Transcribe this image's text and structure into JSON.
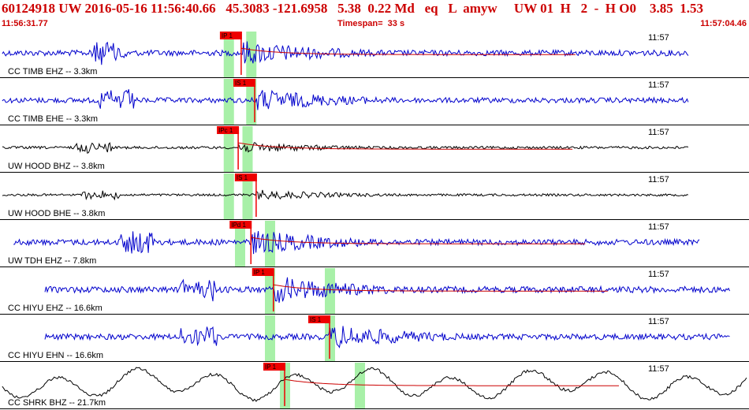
{
  "header": {
    "title": "60124918 UW 2016-05-16 11:56:40.66   45.3083 -121.6958   5.38  0.22 Md   eq   L  amyw     UW 01  H   2  -  H O0    3.85  1.53",
    "start_time": "11:56:31.77",
    "timespan": "Timespan=  33 s",
    "end_time": "11:57:04.46"
  },
  "colors": {
    "accent": "#cc0000",
    "trace_blue": "#0000cc",
    "trace_black": "#000000",
    "window_green": "#a8f0a8",
    "pick_red": "#ee0000"
  },
  "traces": [
    {
      "label": "CC TIMB EHZ -- 3.3km",
      "time_label": "11:57",
      "color": "#0000cc",
      "pick": "IP 1",
      "pick_t": 0.322,
      "windows": [
        0.305,
        0.335
      ],
      "x0": 0.003,
      "x1": 0.92,
      "burst": 0.12,
      "amp": 0.55,
      "decay": true
    },
    {
      "label": "CC TIMB EHE -- 3.3km",
      "time_label": "11:57",
      "color": "#0000cc",
      "pick": "IS 1",
      "pick_t": 0.34,
      "windows": [
        0.305,
        0.335
      ],
      "x0": 0.003,
      "x1": 0.92,
      "burst": 0.13,
      "amp": 0.5,
      "decay": false
    },
    {
      "label": "UW HOOD BHZ -- 3.8km",
      "time_label": "11:57",
      "color": "#000000",
      "pick": "IPc 1",
      "pick_t": 0.318,
      "windows": [
        0.305,
        0.33
      ],
      "x0": 0.003,
      "x1": 0.92,
      "burst": 0.1,
      "amp": 0.25,
      "decay": true
    },
    {
      "label": "UW HOOD BHE -- 3.8km",
      "time_label": "11:57",
      "color": "#000000",
      "pick": "IS 1",
      "pick_t": 0.342,
      "windows": [
        0.305,
        0.33
      ],
      "x0": 0.003,
      "x1": 0.92,
      "burst": 0.11,
      "amp": 0.22,
      "decay": false
    },
    {
      "label": "UW TDH EHZ -- 7.8km",
      "time_label": "11:57",
      "color": "#0000cc",
      "pick": "IPd 1",
      "pick_t": 0.335,
      "windows": [
        0.32,
        0.36
      ],
      "x0": 0.018,
      "x1": 0.935,
      "burst": 0.16,
      "amp": 0.55,
      "decay": true
    },
    {
      "label": "CC HIYU EHZ -- 16.6km",
      "time_label": "11:57",
      "color": "#0000cc",
      "pick": "IP 1",
      "pick_t": 0.365,
      "windows": [
        0.36,
        0.44
      ],
      "x0": 0.06,
      "x1": 0.975,
      "burst": 0.24,
      "amp": 0.6,
      "decay": true
    },
    {
      "label": "CC HIYU EHN -- 16.6km",
      "time_label": "11:57",
      "color": "#0000cc",
      "pick": "IS 1",
      "pick_t": 0.44,
      "windows": [
        0.36,
        0.44
      ],
      "x0": 0.06,
      "x1": 0.975,
      "burst": 0.24,
      "amp": 0.55,
      "decay": false
    },
    {
      "label": "CC SHRK BHZ -- 21.7km",
      "time_label": "11:57",
      "color": "#000000",
      "pick": "IP 1",
      "pick_t": 0.38,
      "windows": [
        0.38,
        0.48
      ],
      "x0": 0.003,
      "x1": 0.997,
      "burst": 0.4,
      "amp": 0.55,
      "decay": true,
      "slow": true
    }
  ]
}
